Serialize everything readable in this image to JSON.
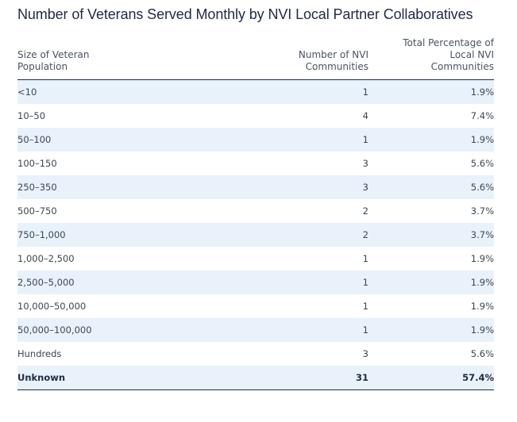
{
  "title": "Number of Veterans Served Monthly by NVI Local Partner Collaboratives",
  "columns": {
    "size": "Size of Veteran Population",
    "count": "Number of NVI Communities",
    "percent": "Total Percentage of Local NVI Communities"
  },
  "rows": [
    {
      "size": "<10",
      "count": "1",
      "percent": "1.9%"
    },
    {
      "size": "10–50",
      "count": "4",
      "percent": "7.4%"
    },
    {
      "size": "50–100",
      "count": "1",
      "percent": "1.9%"
    },
    {
      "size": "100–150",
      "count": "3",
      "percent": "5.6%"
    },
    {
      "size": "250–350",
      "count": "3",
      "percent": "5.6%"
    },
    {
      "size": "500–750",
      "count": "2",
      "percent": "3.7%"
    },
    {
      "size": "750–1,000",
      "count": "2",
      "percent": "3.7%"
    },
    {
      "size": "1,000–2,500",
      "count": "1",
      "percent": "1.9%"
    },
    {
      "size": "2,500–5,000",
      "count": "1",
      "percent": "1.9%"
    },
    {
      "size": "10,000–50,000",
      "count": "1",
      "percent": "1.9%"
    },
    {
      "size": "50,000–100,000",
      "count": "1",
      "percent": "1.9%"
    },
    {
      "size": "Hundreds",
      "count": "3",
      "percent": "5.6%"
    },
    {
      "size": "Unknown",
      "count": "31",
      "percent": "57.4%"
    }
  ]
}
